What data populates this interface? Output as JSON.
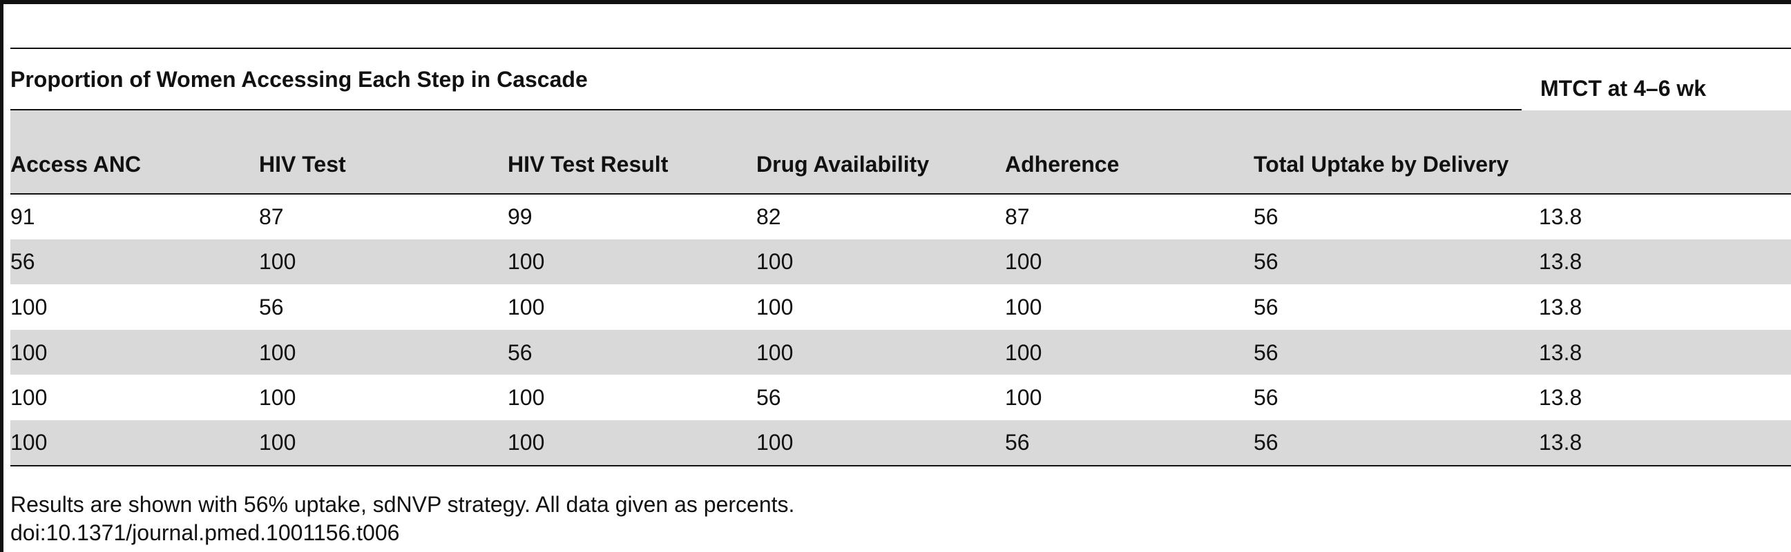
{
  "table": {
    "group_header": "Proportion of Women Accessing Each Step in Cascade",
    "outcome_header": "MTCT at 4–6 wk",
    "columns": [
      "Access ANC",
      "HIV Test",
      "HIV Test Result",
      "Drug Availability",
      "Adherence",
      "Total Uptake by Delivery",
      ""
    ],
    "rows": [
      [
        "91",
        "87",
        "99",
        "82",
        "87",
        "56",
        "13.8"
      ],
      [
        "56",
        "100",
        "100",
        "100",
        "100",
        "56",
        "13.8"
      ],
      [
        "100",
        "56",
        "100",
        "100",
        "100",
        "56",
        "13.8"
      ],
      [
        "100",
        "100",
        "56",
        "100",
        "100",
        "56",
        "13.8"
      ],
      [
        "100",
        "100",
        "100",
        "56",
        "100",
        "56",
        "13.8"
      ],
      [
        "100",
        "100",
        "100",
        "100",
        "56",
        "56",
        "13.8"
      ]
    ]
  },
  "footnote": "Results are shown with 56% uptake, sdNVP strategy. All data given as percents.",
  "doi": "doi:10.1371/journal.pmed.1001156.t006"
}
